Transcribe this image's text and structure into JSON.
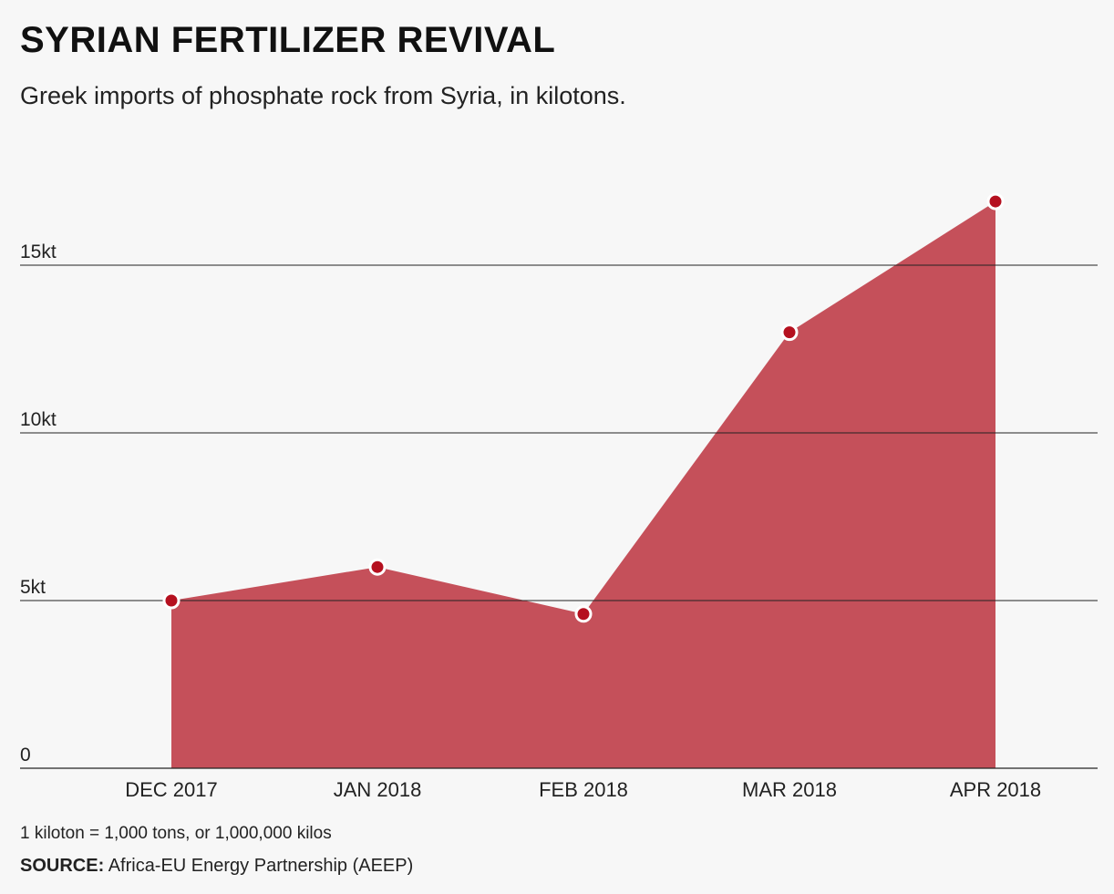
{
  "header": {
    "title": "SYRIAN FERTILIZER REVIVAL",
    "subtitle": "Greek imports of phosphate rock from Syria, in kilotons."
  },
  "footer": {
    "note": "1 kiloton = 1,000 tons, or 1,000,000 kilos",
    "source_label": "SOURCE:",
    "source_text": "Africa-EU Energy Partnership (AEEP)"
  },
  "colors": {
    "area_fill": "#c5505a",
    "marker_fill": "#b5101f",
    "marker_stroke": "#ffffff",
    "gridline": "#222222"
  },
  "chart_data": {
    "type": "area",
    "title": "SYRIAN FERTILIZER REVIVAL",
    "subtitle": "Greek imports of phosphate rock from Syria, in kilotons.",
    "xlabel": "",
    "ylabel": "",
    "categories": [
      "DEC 2017",
      "JAN 2018",
      "FEB 2018",
      "MAR 2018",
      "APR 2018"
    ],
    "series": [
      {
        "values": [
          5.0,
          6.0,
          4.6,
          13.0,
          16.9
        ]
      }
    ],
    "ylim": [
      0,
      18
    ],
    "yticks": [
      0,
      5,
      10,
      15
    ],
    "ytick_labels": [
      "0",
      "5kt",
      "10kt",
      "15kt"
    ],
    "grid": true,
    "legend": "none"
  }
}
